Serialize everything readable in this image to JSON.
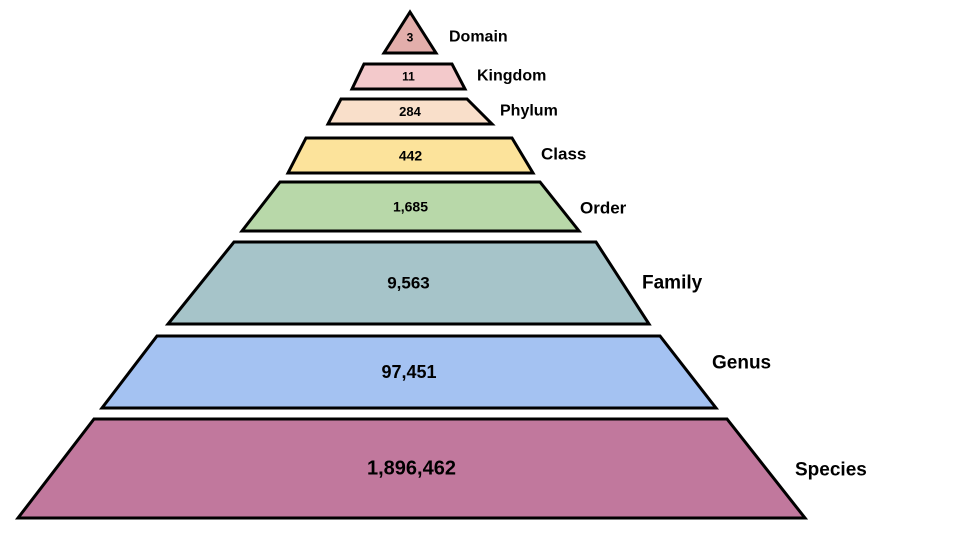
{
  "tiers": [
    {
      "label": "Domain",
      "count": "3",
      "color": "#e3aeab"
    },
    {
      "label": "Kingdom",
      "count": "11",
      "color": "#f3c9cb"
    },
    {
      "label": "Phylum",
      "count": "284",
      "color": "#f9dfca"
    },
    {
      "label": "Class",
      "count": "442",
      "color": "#fce39b"
    },
    {
      "label": "Order",
      "count": "1,685",
      "color": "#b8d8a9"
    },
    {
      "label": "Family",
      "count": "9,563",
      "color": "#a6c4c9"
    },
    {
      "label": "Genus",
      "count": "97,451",
      "color": "#a4c2f2"
    },
    {
      "label": "Species",
      "count": "1,896,462",
      "color": "#c1789d"
    }
  ]
}
